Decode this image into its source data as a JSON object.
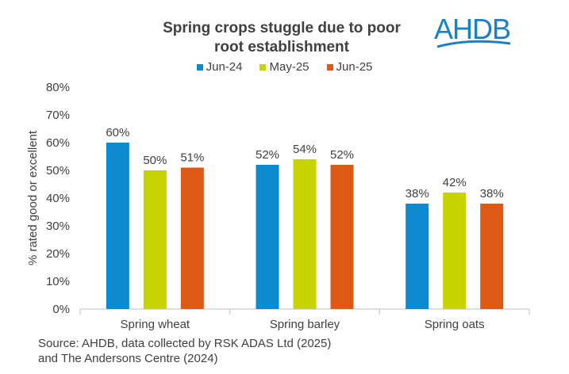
{
  "chart_data": {
    "type": "bar",
    "title_lines": [
      "Spring crops stuggle due to poor",
      "root establishment"
    ],
    "ylabel": "% rated good or excellent",
    "ylim": [
      0,
      80
    ],
    "yticks": [
      "0%",
      "10%",
      "20%",
      "30%",
      "40%",
      "50%",
      "60%",
      "70%",
      "80%"
    ],
    "ytick_values": [
      0,
      10,
      20,
      30,
      40,
      50,
      60,
      70,
      80
    ],
    "categories": [
      "Spring wheat",
      "Spring barley",
      "Spring oats"
    ],
    "series": [
      {
        "name": "Jun-24",
        "color": "#0c8ad0",
        "values": [
          60,
          52,
          38
        ],
        "labels": [
          "60%",
          "52%",
          "38%"
        ]
      },
      {
        "name": "May-25",
        "color": "#c8d400",
        "values": [
          50,
          54,
          42
        ],
        "labels": [
          "50%",
          "54%",
          "42%"
        ]
      },
      {
        "name": "Jun-25",
        "color": "#dc5a16",
        "values": [
          51,
          52,
          38
        ],
        "labels": [
          "51%",
          "52%",
          "38%"
        ]
      }
    ],
    "legend_position": "top",
    "grid": false
  },
  "logo": {
    "text": "AHDB",
    "color": "#1a7fc4"
  },
  "source_lines": [
    "Source: AHDB, data collected by RSK ADAS Ltd (2025)",
    "and The Andersons Centre (2024)"
  ]
}
